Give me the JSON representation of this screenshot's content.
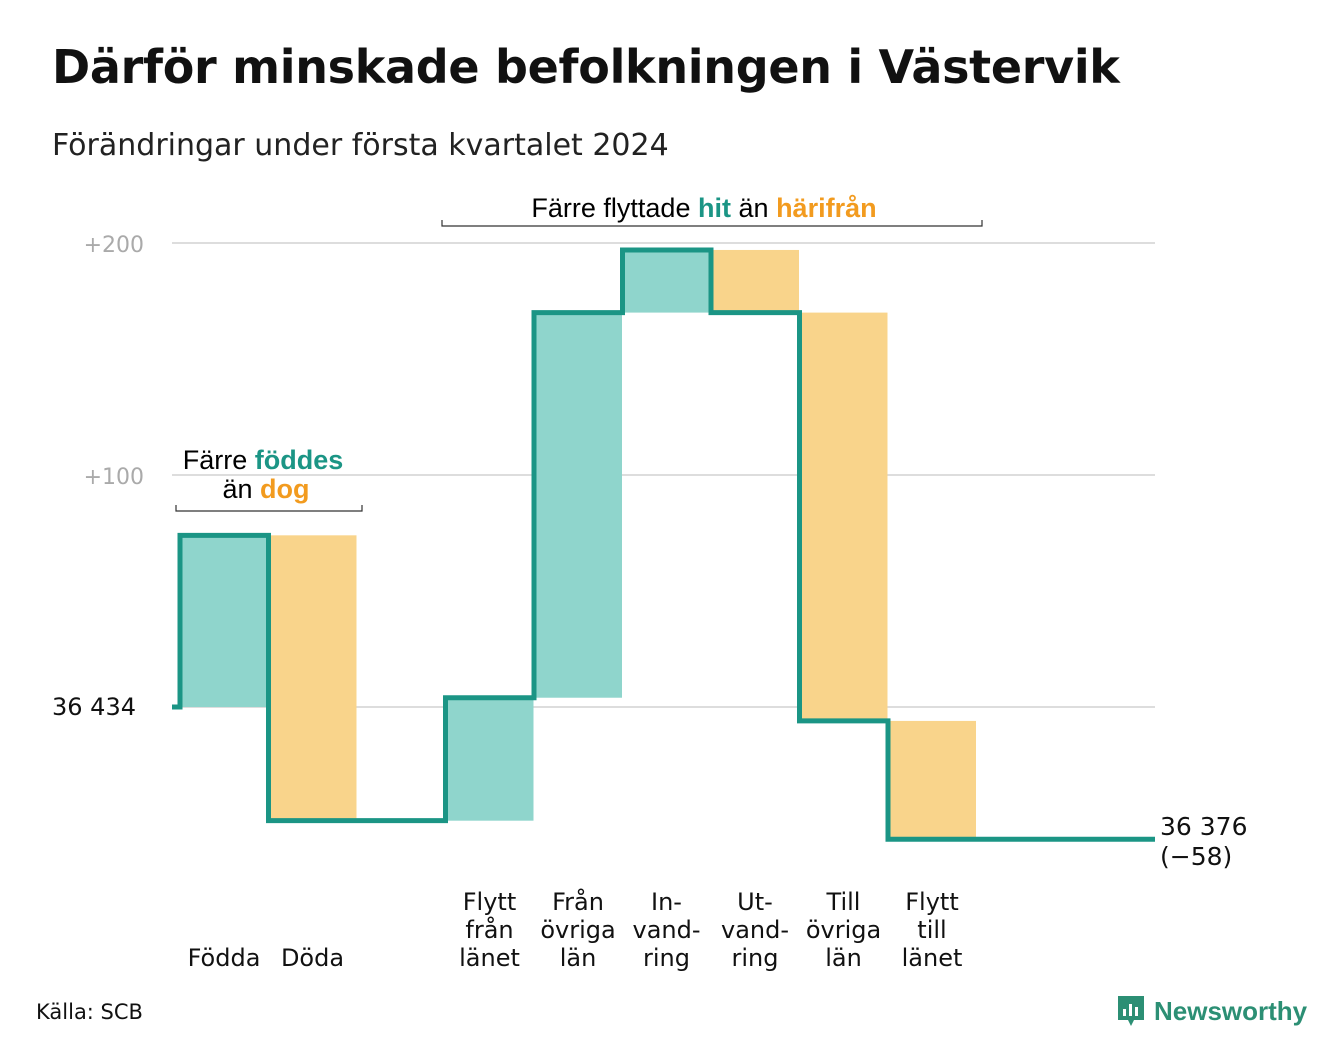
{
  "title": "Därför minskade befolkningen i Västervik",
  "subtitle": "Förändringar under första kvartalet 2024",
  "source": "Källa: SCB",
  "brand": "Newsworthy",
  "colors": {
    "increase_fill": "#8fd5cc",
    "decrease_fill": "#f9d48b",
    "line": "#1b9585",
    "teal_text": "#1b9585",
    "orange_text": "#f29b1f",
    "grid": "#dddddd",
    "axis_text": "#aaaaaa"
  },
  "annotations": {
    "births": {
      "pre": "Färre",
      "hl": "föddes",
      "line2_pre": "än",
      "line2_hl": "dog"
    },
    "moves": {
      "pre": "Färre flyttade",
      "hl": "hit",
      "mid": "än",
      "hl2": "härifrån"
    }
  },
  "chart_data": {
    "type": "waterfall",
    "title": "Därför minskade befolkningen i Västervik",
    "subtitle": "Förändringar under första kvartalet 2024",
    "start_value": 36434,
    "start_label": "36 434",
    "end_value": 36376,
    "end_label": "36 376",
    "end_change_label": "(−58)",
    "yticks": [
      {
        "value": 0,
        "label": ""
      },
      {
        "value": 100,
        "label": "+100"
      },
      {
        "value": 200,
        "label": "+200"
      }
    ],
    "ylim": [
      -58,
      200
    ],
    "steps": [
      {
        "label": [
          "Födda"
        ],
        "change": 74
      },
      {
        "label": [
          "Döda"
        ],
        "change": -123
      },
      {
        "label": [],
        "change": 0
      },
      {
        "label": [
          "Flytt",
          "från",
          "länet"
        ],
        "change": 53
      },
      {
        "label": [
          "Från",
          "övriga",
          "län"
        ],
        "change": 166
      },
      {
        "label": [
          "In-",
          "vand-",
          "ring"
        ],
        "change": 27
      },
      {
        "label": [
          "Ut-",
          "vand-",
          "ring"
        ],
        "change": -27
      },
      {
        "label": [
          "Till",
          "övriga",
          "län"
        ],
        "change": -176
      },
      {
        "label": [
          "Flytt",
          "till",
          "länet"
        ],
        "change": -51
      },
      {
        "label": [],
        "change": 0
      }
    ]
  }
}
